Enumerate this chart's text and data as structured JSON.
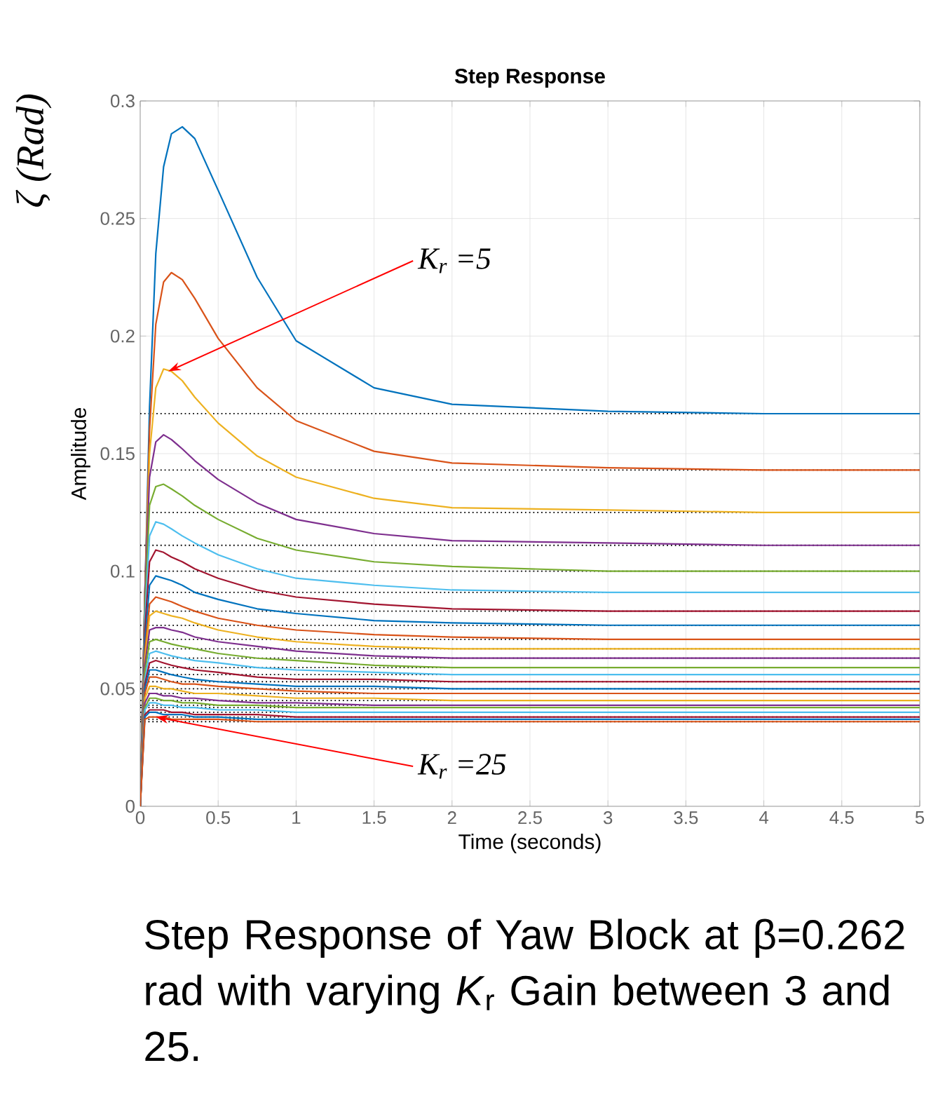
{
  "chart_data": {
    "type": "line",
    "title": "Step Response",
    "xlabel": "Time (seconds)",
    "ylabel": "Amplitude",
    "x": [
      0,
      0.03,
      0.06,
      0.1,
      0.15,
      0.2,
      0.27,
      0.35,
      0.5,
      0.75,
      1,
      1.5,
      2,
      3,
      4,
      5
    ],
    "series": [
      {
        "color": "#0072bd",
        "values": [
          0,
          0.09,
          0.17,
          0.235,
          0.272,
          0.286,
          0.289,
          0.284,
          0.262,
          0.225,
          0.198,
          0.178,
          0.171,
          0.168,
          0.167,
          0.167
        ]
      },
      {
        "color": "#d95319",
        "values": [
          0,
          0.09,
          0.16,
          0.205,
          0.223,
          0.227,
          0.224,
          0.216,
          0.199,
          0.178,
          0.164,
          0.151,
          0.146,
          0.144,
          0.143,
          0.143
        ]
      },
      {
        "color": "#edb120",
        "values": [
          0,
          0.09,
          0.15,
          0.178,
          0.186,
          0.185,
          0.181,
          0.174,
          0.163,
          0.149,
          0.14,
          0.131,
          0.127,
          0.126,
          0.125,
          0.125
        ]
      },
      {
        "color": "#7e2f8e",
        "values": [
          0,
          0.09,
          0.14,
          0.155,
          0.158,
          0.156,
          0.152,
          0.147,
          0.139,
          0.129,
          0.122,
          0.116,
          0.113,
          0.112,
          0.111,
          0.111
        ]
      },
      {
        "color": "#77ac30",
        "values": [
          0,
          0.085,
          0.128,
          0.136,
          0.137,
          0.135,
          0.132,
          0.128,
          0.122,
          0.114,
          0.109,
          0.104,
          0.102,
          0.1,
          0.1,
          0.1
        ]
      },
      {
        "color": "#4dbeee",
        "values": [
          0,
          0.08,
          0.115,
          0.121,
          0.12,
          0.118,
          0.115,
          0.112,
          0.107,
          0.101,
          0.097,
          0.094,
          0.092,
          0.091,
          0.091,
          0.091
        ]
      },
      {
        "color": "#a2142f",
        "values": [
          0,
          0.075,
          0.104,
          0.109,
          0.108,
          0.106,
          0.104,
          0.101,
          0.097,
          0.092,
          0.089,
          0.086,
          0.084,
          0.083,
          0.083,
          0.083
        ]
      },
      {
        "color": "#0072bd",
        "values": [
          0,
          0.07,
          0.094,
          0.098,
          0.097,
          0.096,
          0.094,
          0.091,
          0.088,
          0.084,
          0.082,
          0.079,
          0.078,
          0.077,
          0.077,
          0.077
        ]
      },
      {
        "color": "#d95319",
        "values": [
          0,
          0.066,
          0.086,
          0.089,
          0.088,
          0.087,
          0.085,
          0.083,
          0.08,
          0.077,
          0.075,
          0.073,
          0.072,
          0.071,
          0.071,
          0.071
        ]
      },
      {
        "color": "#edb120",
        "values": [
          0,
          0.063,
          0.081,
          0.083,
          0.082,
          0.081,
          0.08,
          0.078,
          0.075,
          0.072,
          0.07,
          0.068,
          0.067,
          0.067,
          0.067,
          0.067
        ]
      },
      {
        "color": "#7e2f8e",
        "values": [
          0,
          0.06,
          0.075,
          0.076,
          0.076,
          0.075,
          0.074,
          0.072,
          0.07,
          0.068,
          0.066,
          0.064,
          0.063,
          0.063,
          0.063,
          0.063
        ]
      },
      {
        "color": "#77ac30",
        "values": [
          0,
          0.057,
          0.07,
          0.071,
          0.07,
          0.069,
          0.068,
          0.067,
          0.065,
          0.063,
          0.062,
          0.06,
          0.059,
          0.059,
          0.059,
          0.059
        ]
      },
      {
        "color": "#4dbeee",
        "values": [
          0,
          0.054,
          0.065,
          0.066,
          0.065,
          0.064,
          0.063,
          0.062,
          0.061,
          0.059,
          0.058,
          0.057,
          0.056,
          0.056,
          0.056,
          0.056
        ]
      },
      {
        "color": "#a2142f",
        "values": [
          0,
          0.052,
          0.061,
          0.062,
          0.061,
          0.06,
          0.059,
          0.058,
          0.057,
          0.055,
          0.054,
          0.054,
          0.053,
          0.053,
          0.053,
          0.053
        ]
      },
      {
        "color": "#0072bd",
        "values": [
          0,
          0.05,
          0.058,
          0.058,
          0.057,
          0.056,
          0.055,
          0.054,
          0.053,
          0.052,
          0.051,
          0.051,
          0.05,
          0.05,
          0.05,
          0.05
        ]
      },
      {
        "color": "#d95319",
        "values": [
          0,
          0.048,
          0.055,
          0.055,
          0.054,
          0.053,
          0.052,
          0.052,
          0.051,
          0.05,
          0.049,
          0.048,
          0.048,
          0.048,
          0.048,
          0.048
        ]
      },
      {
        "color": "#edb120",
        "values": [
          0,
          0.046,
          0.051,
          0.051,
          0.05,
          0.05,
          0.049,
          0.048,
          0.048,
          0.047,
          0.046,
          0.046,
          0.045,
          0.045,
          0.045,
          0.045
        ]
      },
      {
        "color": "#7e2f8e",
        "values": [
          0,
          0.044,
          0.048,
          0.048,
          0.047,
          0.047,
          0.046,
          0.046,
          0.045,
          0.044,
          0.044,
          0.043,
          0.043,
          0.043,
          0.043,
          0.043
        ]
      },
      {
        "color": "#77ac30",
        "values": [
          0,
          0.042,
          0.046,
          0.046,
          0.045,
          0.045,
          0.044,
          0.044,
          0.043,
          0.043,
          0.042,
          0.042,
          0.042,
          0.042,
          0.042,
          0.042
        ]
      },
      {
        "color": "#4dbeee",
        "values": [
          0,
          0.041,
          0.044,
          0.044,
          0.043,
          0.043,
          0.042,
          0.042,
          0.041,
          0.041,
          0.04,
          0.04,
          0.04,
          0.04,
          0.04,
          0.04
        ]
      },
      {
        "color": "#a2142f",
        "values": [
          0,
          0.039,
          0.041,
          0.041,
          0.041,
          0.04,
          0.04,
          0.039,
          0.039,
          0.039,
          0.038,
          0.038,
          0.038,
          0.038,
          0.038,
          0.038
        ]
      },
      {
        "color": "#0072bd",
        "values": [
          0,
          0.038,
          0.04,
          0.04,
          0.039,
          0.039,
          0.039,
          0.038,
          0.038,
          0.037,
          0.037,
          0.037,
          0.037,
          0.037,
          0.037,
          0.037
        ]
      },
      {
        "color": "#d95319",
        "values": [
          0,
          0.037,
          0.038,
          0.038,
          0.038,
          0.037,
          0.037,
          0.037,
          0.037,
          0.036,
          0.036,
          0.036,
          0.036,
          0.036,
          0.036,
          0.036
        ]
      }
    ],
    "ref_lines": [
      {
        "axis": "y",
        "value": 0.167,
        "color": "#000000",
        "line_style": "dotted"
      },
      {
        "axis": "y",
        "value": 0.143,
        "color": "#000000",
        "line_style": "dotted"
      },
      {
        "axis": "y",
        "value": 0.125,
        "color": "#000000",
        "line_style": "dotted"
      },
      {
        "axis": "y",
        "value": 0.111,
        "color": "#000000",
        "line_style": "dotted"
      },
      {
        "axis": "y",
        "value": 0.1,
        "color": "#000000",
        "line_style": "dotted"
      },
      {
        "axis": "y",
        "value": 0.091,
        "color": "#000000",
        "line_style": "dotted"
      },
      {
        "axis": "y",
        "value": 0.083,
        "color": "#000000",
        "line_style": "dotted"
      },
      {
        "axis": "y",
        "value": 0.077,
        "color": "#000000",
        "line_style": "dotted"
      },
      {
        "axis": "y",
        "value": 0.071,
        "color": "#000000",
        "line_style": "dotted"
      },
      {
        "axis": "y",
        "value": 0.067,
        "color": "#000000",
        "line_style": "dotted"
      },
      {
        "axis": "y",
        "value": 0.063,
        "color": "#000000",
        "line_style": "dotted"
      },
      {
        "axis": "y",
        "value": 0.059,
        "color": "#000000",
        "line_style": "dotted"
      },
      {
        "axis": "y",
        "value": 0.056,
        "color": "#000000",
        "line_style": "dotted"
      },
      {
        "axis": "y",
        "value": 0.053,
        "color": "#000000",
        "line_style": "dotted"
      },
      {
        "axis": "y",
        "value": 0.05,
        "color": "#000000",
        "line_style": "dotted"
      },
      {
        "axis": "y",
        "value": 0.048,
        "color": "#000000",
        "line_style": "dotted"
      },
      {
        "axis": "y",
        "value": 0.045,
        "color": "#000000",
        "line_style": "dotted"
      },
      {
        "axis": "y",
        "value": 0.043,
        "color": "#000000",
        "line_style": "dotted"
      },
      {
        "axis": "y",
        "value": 0.042,
        "color": "#000000",
        "line_style": "dotted"
      },
      {
        "axis": "y",
        "value": 0.04,
        "color": "#000000",
        "line_style": "dotted"
      },
      {
        "axis": "y",
        "value": 0.038,
        "color": "#000000",
        "line_style": "dotted"
      },
      {
        "axis": "y",
        "value": 0.037,
        "color": "#000000",
        "line_style": "dotted"
      },
      {
        "axis": "y",
        "value": 0.036,
        "color": "#000000",
        "line_style": "dotted"
      }
    ],
    "annotations": [
      {
        "text": "K$_{r}$ =5",
        "x": 0.18,
        "y": 0.185
      },
      {
        "text": "K$_{r}$ =25",
        "x": 0.1,
        "y": 0.038
      },
      "ζ (Rad)",
      "Step Response of Yaw Block at β=0.262 rad with varying *K*$_{r}$ Gain between 3 and 25."
    ],
    "xlim": [
      0,
      5
    ],
    "ylim": [
      0,
      0.3
    ],
    "xticks": [
      0,
      0.5,
      1,
      1.5,
      2,
      2.5,
      3,
      3.5,
      4,
      4.5,
      5
    ],
    "yticks": [
      0,
      0.05,
      0.1,
      0.15,
      0.2,
      0.25,
      0.3
    ],
    "grid": true,
    "line_style": "solid",
    "marker": "none"
  }
}
